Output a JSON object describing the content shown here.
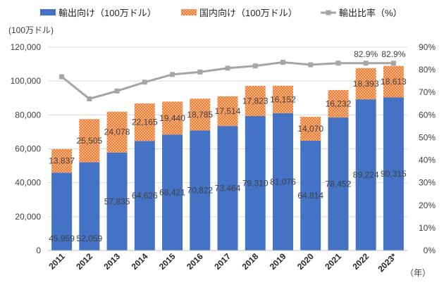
{
  "chart_data": {
    "type": "bar",
    "stacked": true,
    "categories": [
      "2011",
      "2012",
      "2013",
      "2014",
      "2015",
      "2016",
      "2017",
      "2018",
      "2019",
      "2020",
      "2021",
      "2022",
      "2023*"
    ],
    "series": [
      {
        "name": "輸出向け（100万ドル）",
        "axis": "left",
        "type": "bar",
        "color": "#4472C4",
        "values": [
          45959,
          52059,
          57835,
          64626,
          68421,
          70822,
          73464,
          79310,
          81076,
          64814,
          78452,
          89224,
          90315
        ],
        "labels": [
          "45,959",
          "52,059",
          "57,835",
          "64,626",
          "68,421",
          "70,822",
          "73,464",
          "79,310",
          "81,076",
          "64,814",
          "78,452",
          "89,224",
          "90,315"
        ]
      },
      {
        "name": "国内向け（100万ドル）",
        "axis": "left",
        "type": "bar",
        "color": "#ED7D31",
        "values": [
          13837,
          25505,
          24078,
          22165,
          19440,
          18785,
          17514,
          17823,
          16152,
          14070,
          16232,
          18393,
          18613
        ],
        "labels": [
          "13,837",
          "25,505",
          "24,078",
          "22,165",
          "19,440",
          "18,785",
          "17,514",
          "17,823",
          "16,152",
          "14,070",
          "16,232",
          "18,393",
          "18,613"
        ]
      },
      {
        "name": "輸出比率（%）",
        "axis": "right",
        "type": "line",
        "color": "#A5A5A5",
        "values": [
          76.9,
          67.1,
          70.6,
          74.5,
          77.9,
          79.0,
          80.7,
          81.7,
          83.3,
          82.2,
          82.9,
          82.9,
          82.9
        ],
        "labels": [
          "",
          "",
          "",
          "",
          "",
          "",
          "",
          "",
          "",
          "",
          "",
          "82.9%",
          "82.9%"
        ]
      }
    ],
    "left_axis": {
      "unit_label": "(100万ドル)",
      "min": 0,
      "max": 120000,
      "step": 20000,
      "ticks": [
        "0",
        "20,000",
        "40,000",
        "60,000",
        "80,000",
        "100,000",
        "120,000"
      ]
    },
    "right_axis": {
      "min": 0,
      "max": 90,
      "step": 10,
      "ticks": [
        "0%",
        "10%",
        "20%",
        "30%",
        "40%",
        "50%",
        "60%",
        "70%",
        "80%",
        "90%"
      ]
    },
    "x_unit_label": "（年）",
    "legend_position": "top",
    "grid": true
  }
}
